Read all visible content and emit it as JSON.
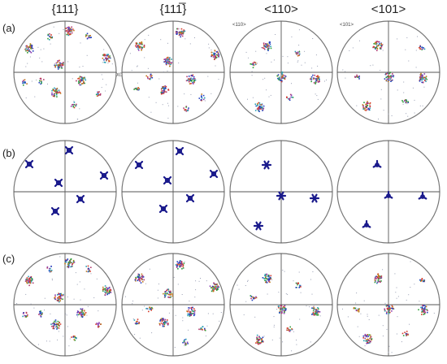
{
  "figure": {
    "columns": [
      {
        "title": "{111}",
        "corner_label": ""
      },
      {
        "title": "{111̅}",
        "corner_label": ""
      },
      {
        "title": "<110>",
        "corner_label": "<110>"
      },
      {
        "title": "<101>",
        "corner_label": "<101>"
      }
    ],
    "rows": [
      {
        "label": "(a)",
        "style": "measured"
      },
      {
        "label": "(b)",
        "style": "ideal"
      },
      {
        "label": "(c)",
        "style": "measured"
      }
    ],
    "axis_marker": "X0",
    "colors": {
      "ideal": "#1a1a8c",
      "clusters": [
        "#1f3fbf",
        "#2e9d3a",
        "#d63a2a",
        "#c07a1a",
        "#8a3fb0",
        "#2a9fb5",
        "#b03a6e"
      ]
    }
  }
}
